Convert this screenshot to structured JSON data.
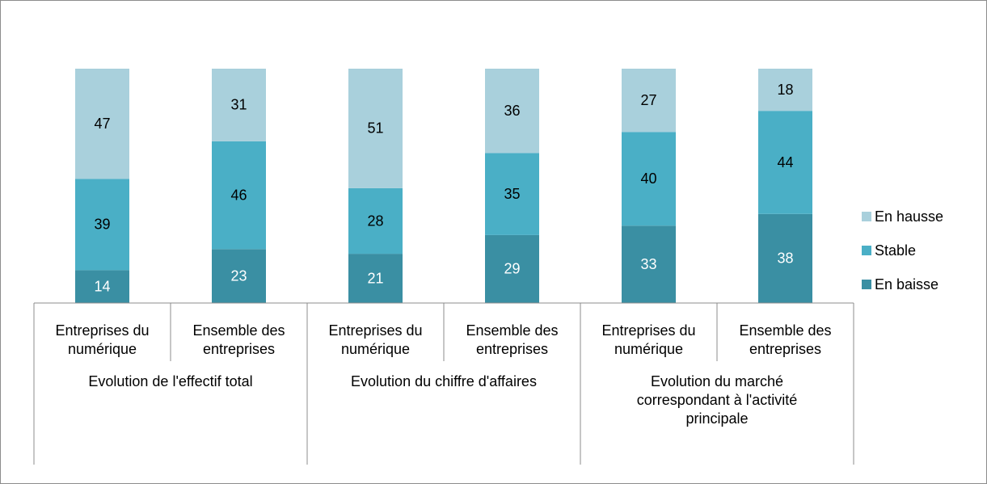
{
  "chart_data": {
    "type": "bar",
    "stacked": true,
    "categories": [
      "Entreprises du numérique",
      "Ensemble des entreprises",
      "Entreprises du numérique",
      "Ensemble des entreprises",
      "Entreprises du numérique",
      "Ensemble des entreprises"
    ],
    "groups": [
      "Evolution de l'effectif total",
      "Evolution du chiffre d'affaires",
      "Evolution du marché correspondant à l'activité principale"
    ],
    "series": [
      {
        "name": "En baisse",
        "color": "#3a8fa3",
        "values": [
          14,
          23,
          21,
          29,
          33,
          38
        ]
      },
      {
        "name": "Stable",
        "color": "#4aafc6",
        "values": [
          39,
          46,
          28,
          35,
          40,
          44
        ]
      },
      {
        "name": "En hausse",
        "color": "#a9d0dc",
        "values": [
          47,
          31,
          51,
          36,
          27,
          18
        ]
      }
    ],
    "ylim": [
      0,
      100
    ],
    "legend": "right"
  }
}
